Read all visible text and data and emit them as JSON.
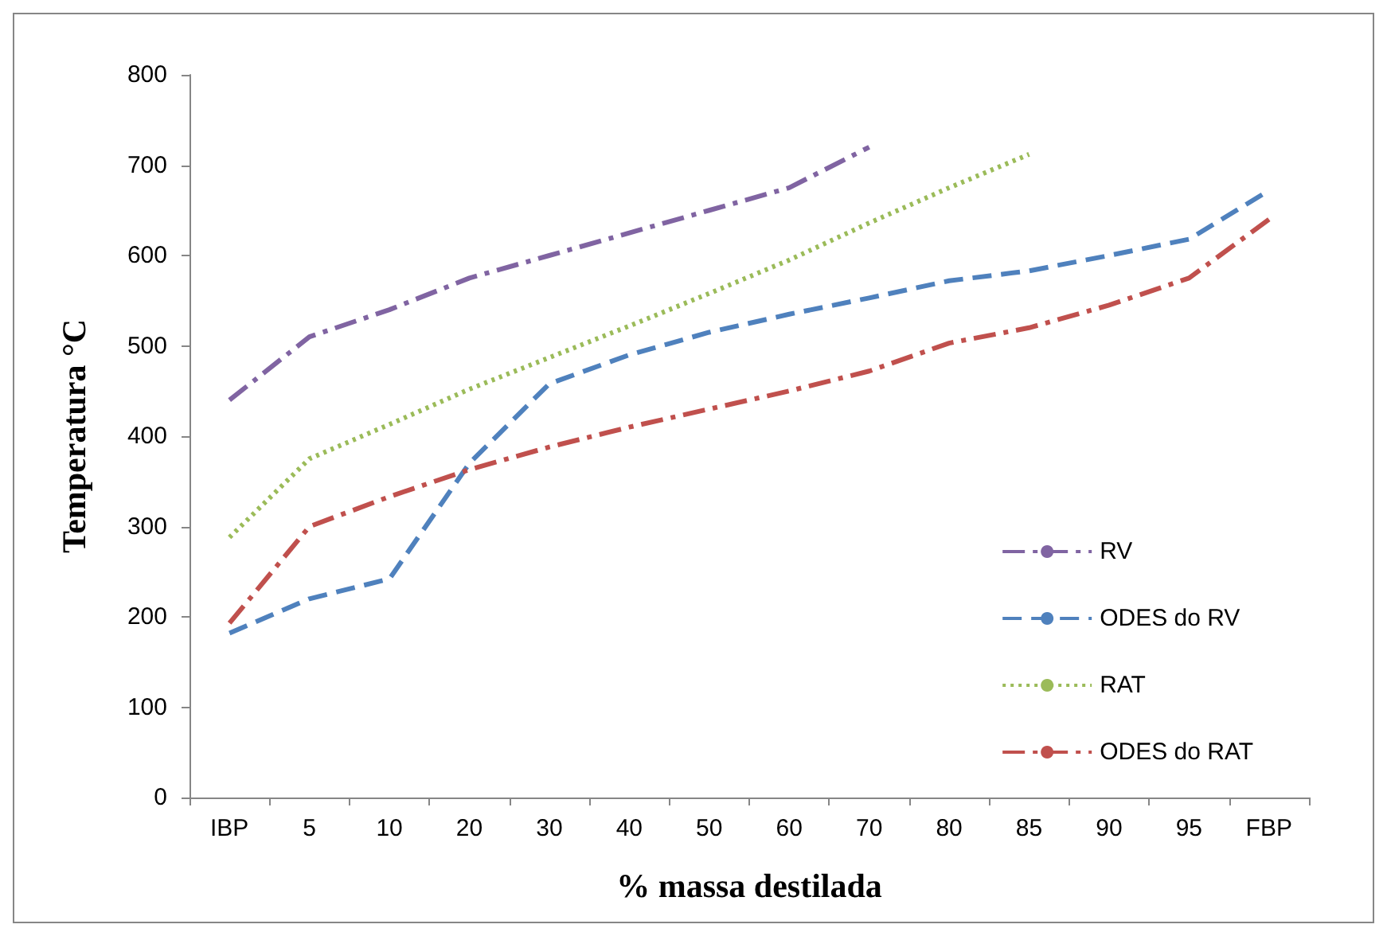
{
  "chart_data": {
    "type": "line",
    "xlabel": "% massa destilada",
    "ylabel": "Temperatura °C",
    "categories": [
      "IBP",
      "5",
      "10",
      "20",
      "30",
      "40",
      "50",
      "60",
      "70",
      "80",
      "85",
      "90",
      "95",
      "FBP"
    ],
    "ylim": [
      0,
      800
    ],
    "yticks": [
      0,
      100,
      200,
      300,
      400,
      500,
      600,
      700,
      800
    ],
    "grid": false,
    "legend": "right",
    "marker": "none",
    "series": [
      {
        "name": "RV",
        "color": "#8064a2",
        "line_style": "dashdot",
        "values": [
          440,
          510,
          540,
          575,
          600,
          625,
          650,
          675,
          720,
          null,
          null,
          null,
          null,
          null
        ]
      },
      {
        "name": "ODES do RV",
        "color": "#4f81bd",
        "line_style": "dashed",
        "values": [
          182,
          220,
          242,
          370,
          458,
          490,
          515,
          535,
          553,
          572,
          583,
          600,
          618,
          672
        ]
      },
      {
        "name": "RAT",
        "color": "#9bbb59",
        "line_style": "dotted",
        "values": [
          288,
          375,
          413,
          452,
          487,
          522,
          558,
          595,
          636,
          675,
          712,
          null,
          null,
          null
        ]
      },
      {
        "name": "ODES do RAT",
        "color": "#c0504d",
        "line_style": "dashdot",
        "values": [
          193,
          300,
          333,
          363,
          388,
          410,
          430,
          450,
          472,
          503,
          520,
          545,
          575,
          640
        ]
      }
    ]
  }
}
